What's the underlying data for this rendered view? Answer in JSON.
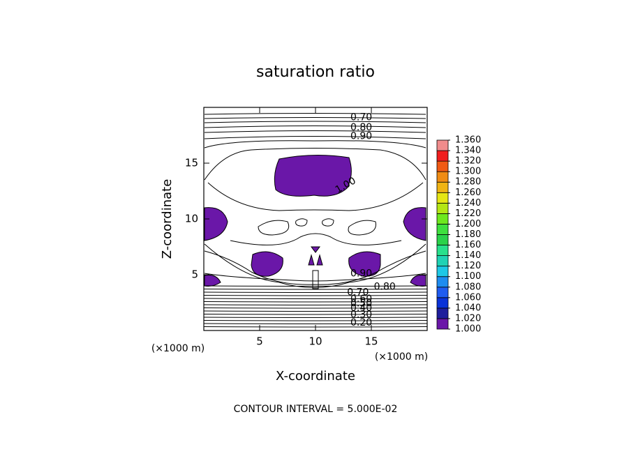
{
  "chart_data": {
    "type": "contour",
    "title": "saturation ratio",
    "x_label": "X-coordinate",
    "y_label": "Z-coordinate",
    "x_unit": "(×1000 m)",
    "y_unit": "(×1000 m)",
    "footer": "CONTOUR INTERVAL = 5.000E-02",
    "xlim": [
      0,
      20
    ],
    "ylim": [
      0,
      20
    ],
    "xticks": [
      5,
      10,
      15
    ],
    "yticks": [
      5,
      10,
      15
    ],
    "clim": [
      1,
      1.36
    ],
    "cticks": [
      {
        "value": 1.0,
        "label": "1.000"
      },
      {
        "value": 1.02,
        "label": "1.020"
      },
      {
        "value": 1.04,
        "label": "1.040"
      },
      {
        "value": 1.06,
        "label": "1.060"
      },
      {
        "value": 1.08,
        "label": "1.080"
      },
      {
        "value": 1.1,
        "label": "1.100"
      },
      {
        "value": 1.12,
        "label": "1.120"
      },
      {
        "value": 1.14,
        "label": "1.140"
      },
      {
        "value": 1.16,
        "label": "1.160"
      },
      {
        "value": 1.18,
        "label": "1.180"
      },
      {
        "value": 1.2,
        "label": "1.200"
      },
      {
        "value": 1.22,
        "label": "1.220"
      },
      {
        "value": 1.24,
        "label": "1.240"
      },
      {
        "value": 1.26,
        "label": "1.260"
      },
      {
        "value": 1.28,
        "label": "1.280"
      },
      {
        "value": 1.3,
        "label": "1.300"
      },
      {
        "value": 1.32,
        "label": "1.320"
      },
      {
        "value": 1.34,
        "label": "1.340"
      },
      {
        "value": 1.36,
        "label": "1.360"
      }
    ],
    "colors": [
      "#6a17a8",
      "#1e1e9c",
      "#0a32d8",
      "#1f5cf0",
      "#1e8cf0",
      "#1ec8e6",
      "#20d2b4",
      "#28e08c",
      "#2ad24a",
      "#3ee03e",
      "#6ee81e",
      "#b4e614",
      "#e6e614",
      "#f0b414",
      "#f08c14",
      "#f05a14",
      "#f01e1e",
      "#f08c8c"
    ],
    "contour_labels": [
      {
        "value": 0.7,
        "label": "0.70",
        "x": 14.1,
        "y": 19.1
      },
      {
        "value": 0.8,
        "label": "0.80",
        "x": 14.1,
        "y": 18.2
      },
      {
        "value": 0.9,
        "label": "0.90",
        "x": 14.1,
        "y": 17.4
      },
      {
        "value": 1.0,
        "label": "1.00",
        "x": 12.7,
        "y": 13.0
      },
      {
        "value": 0.9,
        "label": "0.90",
        "x": 14.1,
        "y": 5.1
      },
      {
        "value": 0.8,
        "label": "0.80",
        "x": 16.2,
        "y": 3.9
      },
      {
        "value": 0.7,
        "label": "0.70",
        "x": 13.8,
        "y": 3.4
      },
      {
        "value": 0.6,
        "label": "0.60",
        "x": 14.1,
        "y": 2.8
      },
      {
        "value": 0.5,
        "label": "0.50",
        "x": 14.1,
        "y": 2.4
      },
      {
        "value": 0.4,
        "label": "0.40",
        "x": 14.1,
        "y": 2.0
      },
      {
        "value": 0.3,
        "label": "0.30",
        "x": 14.1,
        "y": 1.4
      },
      {
        "value": 0.2,
        "label": "0.20",
        "x": 14.1,
        "y": 0.7
      }
    ]
  }
}
